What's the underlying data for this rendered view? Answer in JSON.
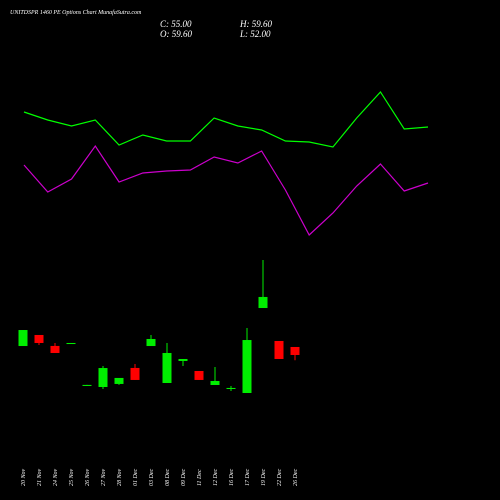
{
  "chart_data": {
    "type": "candlestick",
    "title": "UNITDSPR 1460 PE Options  Chart MunafaSutra.com",
    "close_label": "C: 55.00",
    "open_label": "O: 59.60",
    "high_label": "H: 59.60",
    "low_label": "L: 52.00",
    "categories": [
      "20 Nov",
      "21 Nov",
      "24 Nov",
      "25 Nov",
      "26 Nov",
      "27 Nov",
      "28 Nov",
      "01 Dec",
      "03 Dec",
      "08 Dec",
      "09 Dec",
      "11 Dec",
      "12 Dec",
      "16 Dec",
      "17 Dec",
      "19 Dec",
      "22 Dec",
      "26 Dec"
    ],
    "open": [
      60.15,
      66.5,
      60.2,
      61.3,
      37.2,
      36.6,
      38.35,
      47.55,
      60.15,
      38.9,
      51.55,
      45.8,
      37.75,
      35.45,
      33.15,
      82.0,
      63.05,
      59.6
    ],
    "high": [
      69.35,
      66.5,
      61.9,
      61.9,
      37.8,
      48.7,
      41.8,
      49.85,
      66.5,
      61.9,
      52.7,
      45.8,
      48.1,
      37.2,
      70.5,
      109.6,
      63.05,
      59.6
    ],
    "low": [
      60.15,
      60.75,
      56.15,
      61.3,
      37.2,
      35.45,
      37.8,
      40.65,
      60.15,
      38.9,
      48.7,
      40.65,
      37.75,
      34.3,
      33.15,
      82.0,
      52.7,
      52.0
    ],
    "close": [
      69.35,
      61.9,
      56.15,
      61.9,
      37.8,
      47.5,
      41.8,
      40.65,
      64.2,
      56.15,
      52.7,
      40.65,
      40.05,
      36.05,
      63.6,
      88.35,
      52.7,
      55.0
    ],
    "up_color": "#00ee00",
    "down_color": "#ff0000",
    "lines": [
      {
        "color": "#00ff00",
        "values": [
          138,
          130,
          124,
          130,
          105,
          115,
          109,
          109,
          132,
          124,
          120,
          109,
          108,
          103,
          132,
          158,
          121,
          123
        ]
      },
      {
        "color": "#cc00cc",
        "values": [
          85,
          58,
          71,
          104,
          68,
          77,
          79,
          80,
          93,
          87,
          99,
          60,
          15,
          37,
          64,
          86,
          59,
          67
        ]
      }
    ]
  }
}
